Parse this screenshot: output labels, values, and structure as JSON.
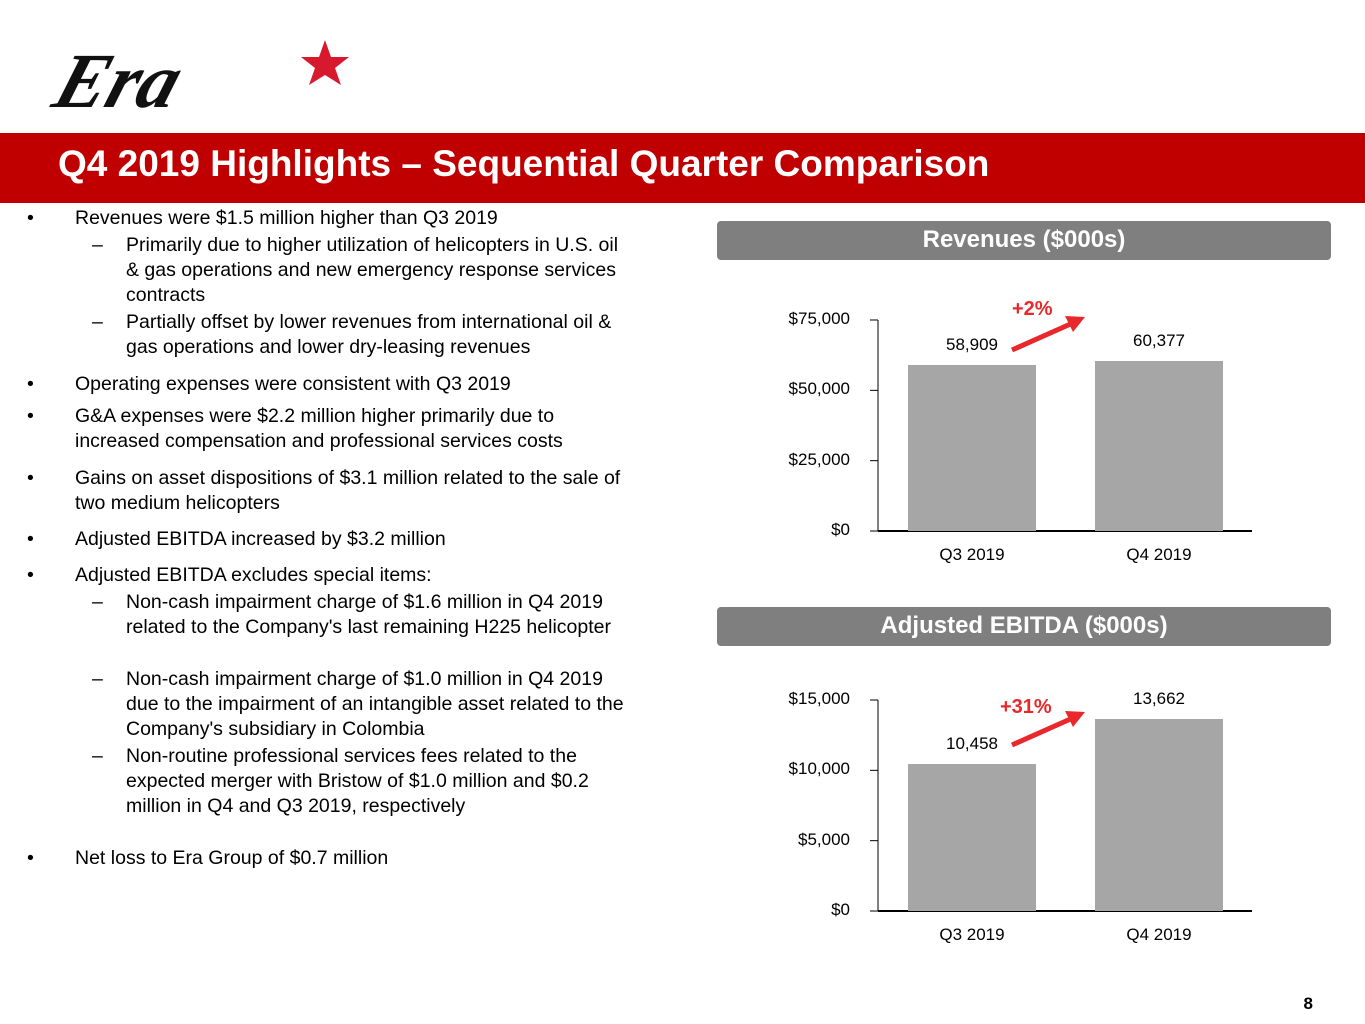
{
  "logo": {
    "text": "Era",
    "star_color": "#D7192D"
  },
  "header": {
    "title": "Q4 2019 Highlights – Sequential Quarter Comparison",
    "color": "#C00000"
  },
  "bullets": [
    {
      "level": 1,
      "text": "Revenues were $1.5 million higher than Q3 2019"
    },
    {
      "level": 2,
      "text": "Primarily due to higher utilization of helicopters in U.S. oil & gas operations and new emergency response services contracts"
    },
    {
      "level": 2,
      "text": "Partially offset by lower revenues from international oil & gas operations and lower dry-leasing revenues"
    },
    {
      "level": 1,
      "text": "Operating expenses were consistent with Q3 2019"
    },
    {
      "level": 1,
      "text": "G&A expenses were $2.2 million higher primarily due to increased compensation and professional services costs"
    },
    {
      "level": 1,
      "text": "Gains on asset dispositions of $3.1 million related to the sale of two medium helicopters"
    },
    {
      "level": 1,
      "text": "Adjusted EBITDA increased by $3.2 million"
    },
    {
      "level": 1,
      "text": "Adjusted EBITDA excludes special items:"
    },
    {
      "level": 2,
      "text": "Non-cash impairment charge of $1.6 million in Q4 2019 related to the Company's last remaining H225 helicopter"
    },
    {
      "level": 2,
      "text": "Non-cash impairment charge of $1.0 million in Q4 2019 due to the impairment of an intangible asset related to the Company's subsidiary in Colombia"
    },
    {
      "level": 2,
      "text": "Non-routine professional services fees related to the expected merger with Bristow of $1.0 million and $0.2 million in Q4 and Q3 2019, respectively"
    },
    {
      "level": 1,
      "text": "Net loss to Era Group of $0.7 million"
    }
  ],
  "markers": {
    "bullet": "•",
    "dash": "–"
  },
  "chart_data": [
    {
      "type": "bar",
      "title": "Revenues ($000s)",
      "categories": [
        "Q3 2019",
        "Q4 2019"
      ],
      "values": [
        58909,
        60377
      ],
      "value_labels": [
        "58,909",
        "60,377"
      ],
      "yticks": [
        "$0",
        "$25,000",
        "$50,000",
        "$75,000"
      ],
      "ytick_values": [
        0,
        25000,
        50000,
        75000
      ],
      "ylim": [
        0,
        75000
      ],
      "annotation": "+2%",
      "bar_color": "#A6A6A6",
      "annotation_color": "#E8282B"
    },
    {
      "type": "bar",
      "title": "Adjusted EBITDA ($000s)",
      "categories": [
        "Q3 2019",
        "Q4 2019"
      ],
      "values": [
        10458,
        13662
      ],
      "value_labels": [
        "10,458",
        "13,662"
      ],
      "yticks": [
        "$0",
        "$5,000",
        "$10,000",
        "$15,000"
      ],
      "ytick_values": [
        0,
        5000,
        10000,
        15000
      ],
      "ylim": [
        0,
        15000
      ],
      "annotation": "+31%",
      "bar_color": "#A6A6A6",
      "annotation_color": "#E8282B"
    }
  ],
  "page_number": "8"
}
